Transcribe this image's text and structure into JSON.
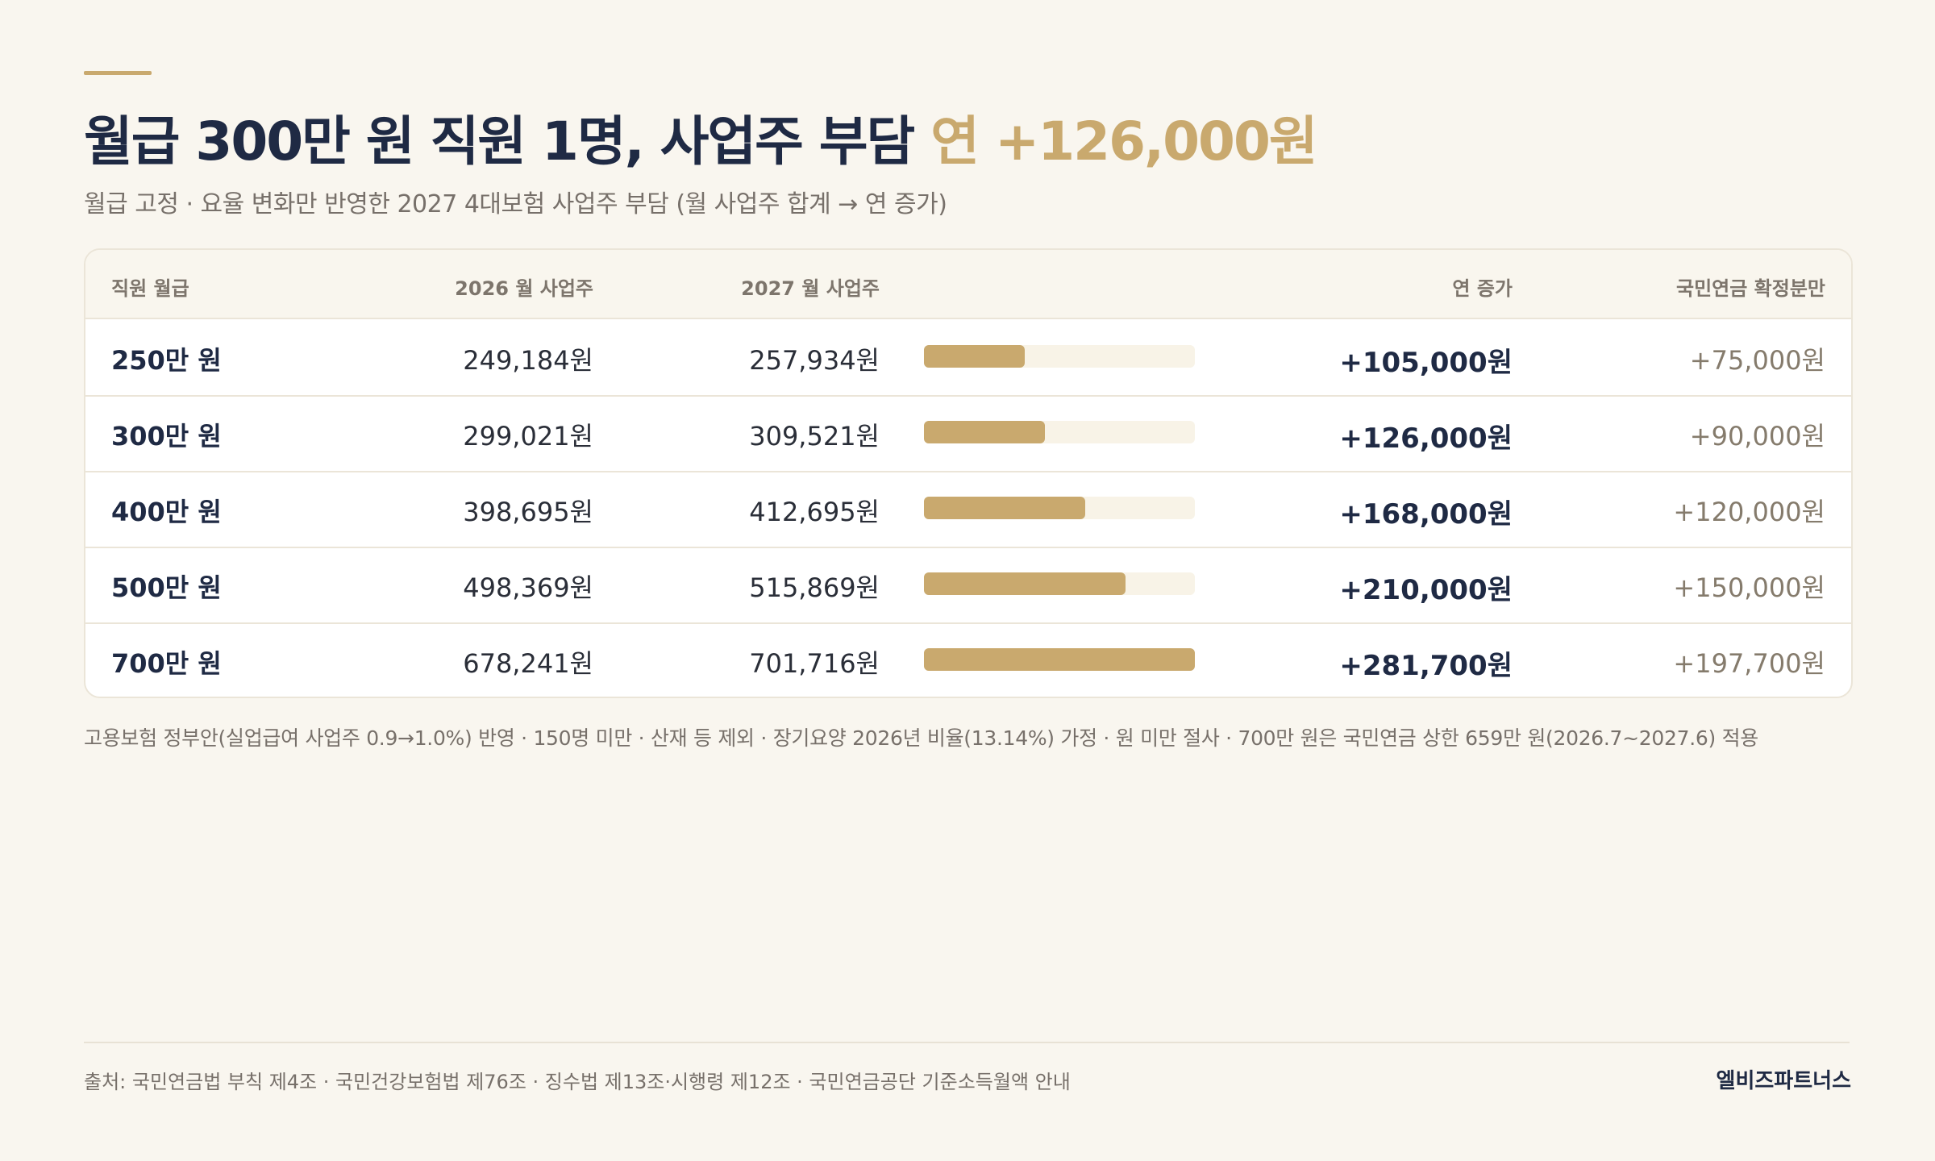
{
  "title_main": "월급 300만 원 직원 1명, 사업주 부담",
  "title_highlight": "연 +126,000원",
  "subtitle": "월급 고정 · 요율 변화만 반영한 2027 4대보험 사업주 부담 (월 사업주 합계 → 연 증가)",
  "table": {
    "headers": [
      "직원 월급",
      "2026 월 사업주",
      "2027 월 사업주",
      "연 증가",
      "국민연금 확정분만"
    ],
    "rows": [
      {
        "salary": "250만 원",
        "m2026": "249,184원",
        "m2027": "257,934원",
        "inc": "+105,000원",
        "np": "+75,000원"
      },
      {
        "salary": "300만 원",
        "m2026": "299,021원",
        "m2027": "309,521원",
        "inc": "+126,000원",
        "np": "+90,000원"
      },
      {
        "salary": "400만 원",
        "m2026": "398,695원",
        "m2027": "412,695원",
        "inc": "+168,000원",
        "np": "+120,000원"
      },
      {
        "salary": "500만 원",
        "m2026": "498,369원",
        "m2027": "515,869원",
        "inc": "+210,000원",
        "np": "+150,000원"
      },
      {
        "salary": "700만 원",
        "m2026": "678,241원",
        "m2027": "701,716원",
        "inc": "+281,700원",
        "np": "+197,700원"
      }
    ]
  },
  "chart_data": {
    "type": "bar",
    "categories": [
      "250만 원",
      "300만 원",
      "400만 원",
      "500만 원",
      "700만 원"
    ],
    "values": [
      105000,
      126000,
      168000,
      210000,
      281700
    ],
    "ylim": [
      0,
      281700
    ]
  },
  "note": "고용보험 정부안(실업급여 사업주 0.9→1.0%) 반영 · 150명 미만 · 산재 등 제외 · 장기요양 2026년 비율(13.14%) 가정 · 원 미만 절사 · 700만 원은 국민연금 상한 659만 원(2026.7~2027.6) 적용",
  "footer": {
    "source": "출처: 국민연금법 부칙 제4조 · 국민건강보험법 제76조 · 징수법 제13조·시행령 제12조 · 국민연금공단 기준소득월액 안내",
    "brand": "엘비즈파트너스"
  },
  "colors": {
    "accent": "#c9a96e",
    "navy": "#1f2a44",
    "background": "#f9f6ef"
  }
}
